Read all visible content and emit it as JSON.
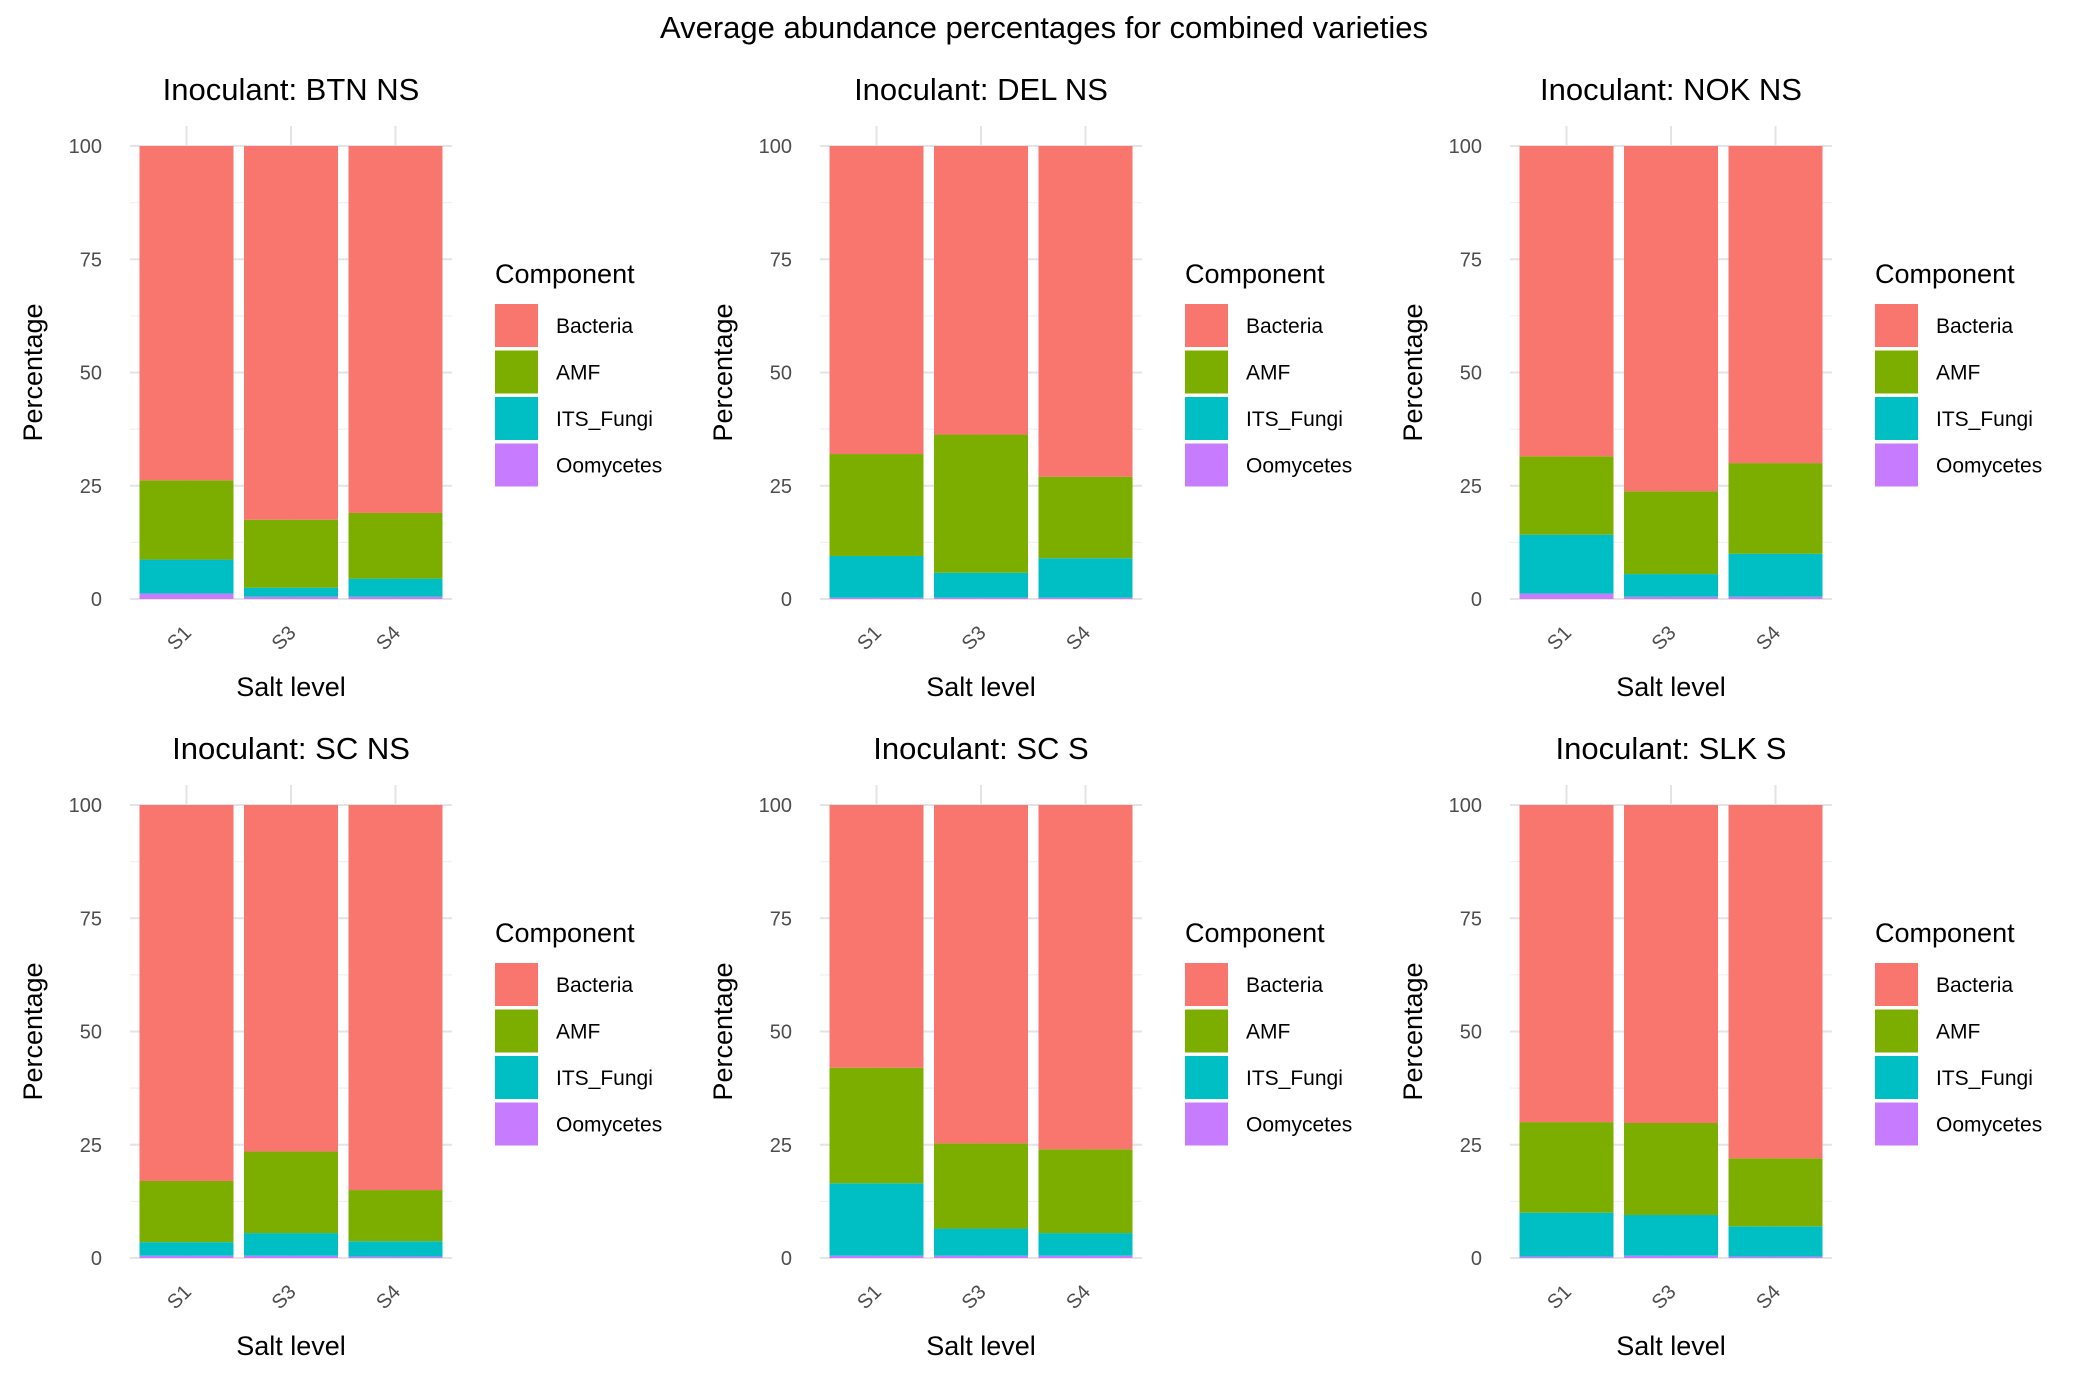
{
  "figure_title": "Average abundance percentages for combined varieties",
  "colors": {
    "Bacteria": "#F8766D",
    "AMF": "#7CAE00",
    "ITS_Fungi": "#00BFC4",
    "Oomycetes": "#C77CFF"
  },
  "chart_data": [
    {
      "type": "bar",
      "stacked": true,
      "title": "Inoculant: BTN NS",
      "xlabel": "Salt level",
      "ylabel": "Percentage",
      "categories": [
        "S1",
        "S3",
        "S4"
      ],
      "ylim": [
        0,
        100
      ],
      "yticks": [
        0,
        25,
        50,
        75,
        100
      ],
      "legend_title": "Component",
      "legend_position": "right",
      "series": [
        {
          "name": "Oomycetes",
          "values": [
            1.2,
            0.5,
            0.5
          ]
        },
        {
          "name": "ITS_Fungi",
          "values": [
            7.5,
            2.0,
            4.0
          ]
        },
        {
          "name": "AMF",
          "values": [
            17.5,
            15.0,
            14.5
          ]
        },
        {
          "name": "Bacteria",
          "values": [
            73.8,
            82.5,
            81.0
          ]
        }
      ]
    },
    {
      "type": "bar",
      "stacked": true,
      "title": "Inoculant: DEL NS",
      "xlabel": "Salt level",
      "ylabel": "Percentage",
      "categories": [
        "S1",
        "S3",
        "S4"
      ],
      "ylim": [
        0,
        100
      ],
      "yticks": [
        0,
        25,
        50,
        75,
        100
      ],
      "legend_title": "Component",
      "legend_position": "right",
      "series": [
        {
          "name": "Oomycetes",
          "values": [
            0.3,
            0.3,
            0.3
          ]
        },
        {
          "name": "ITS_Fungi",
          "values": [
            9.2,
            5.5,
            8.7
          ]
        },
        {
          "name": "AMF",
          "values": [
            22.5,
            30.5,
            18.0
          ]
        },
        {
          "name": "Bacteria",
          "values": [
            68.0,
            63.7,
            73.0
          ]
        }
      ]
    },
    {
      "type": "bar",
      "stacked": true,
      "title": "Inoculant: NOK NS",
      "xlabel": "Salt level",
      "ylabel": "Percentage",
      "categories": [
        "S1",
        "S3",
        "S4"
      ],
      "ylim": [
        0,
        100
      ],
      "yticks": [
        0,
        25,
        50,
        75,
        100
      ],
      "legend_title": "Component",
      "legend_position": "right",
      "series": [
        {
          "name": "Oomycetes",
          "values": [
            1.2,
            0.5,
            0.5
          ]
        },
        {
          "name": "ITS_Fungi",
          "values": [
            13.0,
            5.0,
            9.5
          ]
        },
        {
          "name": "AMF",
          "values": [
            17.3,
            18.3,
            20.0
          ]
        },
        {
          "name": "Bacteria",
          "values": [
            68.5,
            76.2,
            70.0
          ]
        }
      ]
    },
    {
      "type": "bar",
      "stacked": true,
      "title": "Inoculant: SC NS",
      "xlabel": "Salt level",
      "ylabel": "Percentage",
      "categories": [
        "S1",
        "S3",
        "S4"
      ],
      "ylim": [
        0,
        100
      ],
      "yticks": [
        0,
        25,
        50,
        75,
        100
      ],
      "legend_title": "Component",
      "legend_position": "right",
      "series": [
        {
          "name": "Oomycetes",
          "values": [
            0.5,
            0.5,
            0.3
          ]
        },
        {
          "name": "ITS_Fungi",
          "values": [
            3.0,
            5.0,
            3.4
          ]
        },
        {
          "name": "AMF",
          "values": [
            13.5,
            18.0,
            11.3
          ]
        },
        {
          "name": "Bacteria",
          "values": [
            83.0,
            76.5,
            85.0
          ]
        }
      ]
    },
    {
      "type": "bar",
      "stacked": true,
      "title": "Inoculant: SC S",
      "xlabel": "Salt level",
      "ylabel": "Percentage",
      "categories": [
        "S1",
        "S3",
        "S4"
      ],
      "ylim": [
        0,
        100
      ],
      "yticks": [
        0,
        25,
        50,
        75,
        100
      ],
      "legend_title": "Component",
      "legend_position": "right",
      "series": [
        {
          "name": "Oomycetes",
          "values": [
            0.5,
            0.5,
            0.5
          ]
        },
        {
          "name": "ITS_Fungi",
          "values": [
            16.0,
            6.0,
            5.0
          ]
        },
        {
          "name": "AMF",
          "values": [
            25.5,
            18.8,
            18.5
          ]
        },
        {
          "name": "Bacteria",
          "values": [
            58.0,
            74.7,
            76.0
          ]
        }
      ]
    },
    {
      "type": "bar",
      "stacked": true,
      "title": "Inoculant: SLK S",
      "xlabel": "Salt level",
      "ylabel": "Percentage",
      "categories": [
        "S1",
        "S3",
        "S4"
      ],
      "ylim": [
        0,
        100
      ],
      "yticks": [
        0,
        25,
        50,
        75,
        100
      ],
      "legend_title": "Component",
      "legend_position": "right",
      "series": [
        {
          "name": "Oomycetes",
          "values": [
            0.3,
            0.5,
            0.3
          ]
        },
        {
          "name": "ITS_Fungi",
          "values": [
            9.7,
            9.0,
            6.7
          ]
        },
        {
          "name": "AMF",
          "values": [
            20.0,
            20.3,
            15.0
          ]
        },
        {
          "name": "Bacteria",
          "values": [
            70.0,
            70.2,
            78.0
          ]
        }
      ]
    }
  ]
}
